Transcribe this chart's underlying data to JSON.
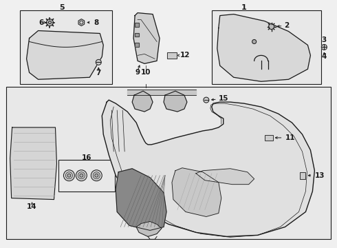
{
  "bg_color": "#f0f0f0",
  "line_color": "#1a1a1a",
  "box_bg": "#e8e8e8",
  "white": "#ffffff",
  "fig_width": 4.9,
  "fig_height": 3.6,
  "dpi": 100
}
